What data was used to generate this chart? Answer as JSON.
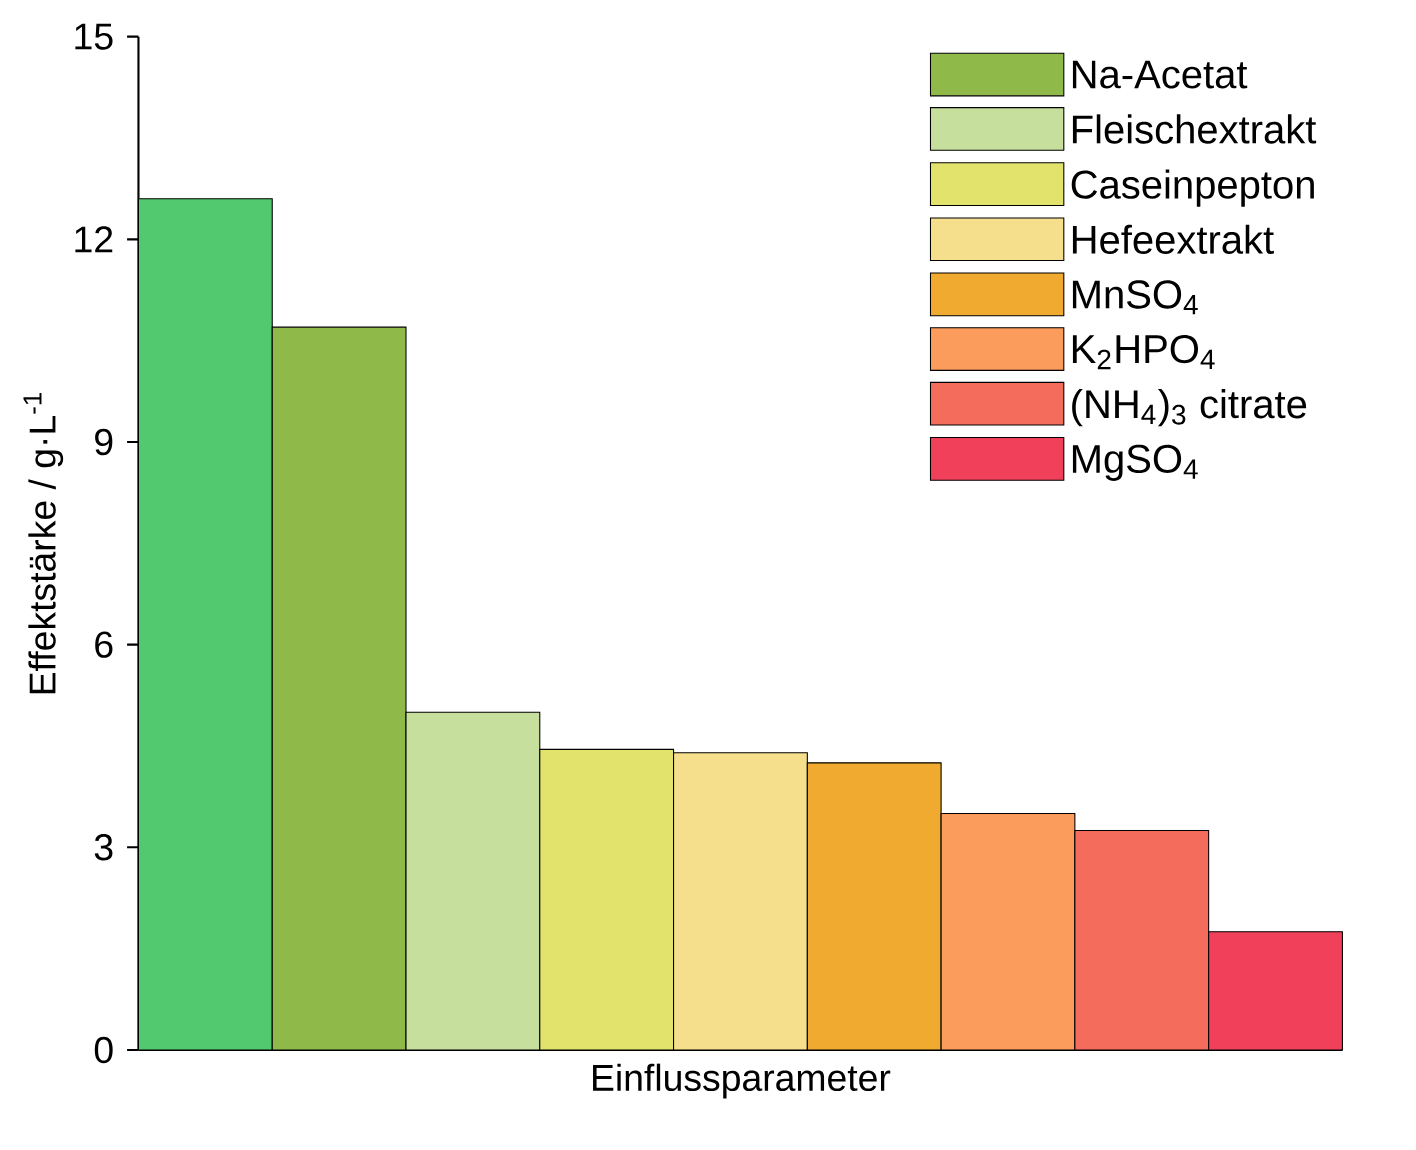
{
  "chart_data": {
    "type": "bar",
    "xlabel": "Einflussparameter",
    "ylabel": "Effektstärke / g·L$^{-1}$",
    "categories": [
      null,
      null,
      null,
      null,
      null,
      null,
      null,
      null,
      null
    ],
    "ylim": [
      0,
      15
    ],
    "yticks": [
      0,
      3,
      6,
      9,
      12,
      15
    ],
    "legend": "top right",
    "tick_labels": "y",
    "series": [
      {
        "color": "#52c96e",
        "values": [
          12.6,
          null,
          null,
          null,
          null,
          null,
          null,
          null,
          null
        ]
      },
      {
        "name": "Na-Acetat",
        "color": "#8fba4a",
        "values": [
          null,
          10.7,
          null,
          null,
          null,
          null,
          null,
          null,
          null
        ]
      },
      {
        "name": "Fleischextrakt",
        "color": "#c6df9c",
        "values": [
          null,
          null,
          5.0,
          null,
          null,
          null,
          null,
          null,
          null
        ]
      },
      {
        "name": "Caseinpepton",
        "color": "#e2e36c",
        "values": [
          null,
          null,
          null,
          4.45,
          null,
          null,
          null,
          null,
          null
        ]
      },
      {
        "name": "Hefeextrakt",
        "color": "#f6df8c",
        "values": [
          null,
          null,
          null,
          null,
          4.4,
          null,
          null,
          null,
          null
        ]
      },
      {
        "name": "MnSO$_{4}$",
        "color": "#f0aa30",
        "values": [
          null,
          null,
          null,
          null,
          null,
          4.25,
          null,
          null,
          null
        ]
      },
      {
        "name": "K$_{2}$HPO$_{4}$",
        "color": "#fb9b5c",
        "values": [
          null,
          null,
          null,
          null,
          null,
          null,
          3.5,
          null,
          null
        ]
      },
      {
        "name": "(NH$_{4}$)$_{3}$ citrate",
        "color": "#f46c5c",
        "values": [
          null,
          null,
          null,
          null,
          null,
          null,
          null,
          3.25,
          null
        ]
      },
      {
        "name": "MgSO$_{4}$",
        "color": "#f0405a",
        "values": [
          null,
          null,
          null,
          null,
          null,
          null,
          null,
          null,
          1.75
        ]
      }
    ]
  }
}
